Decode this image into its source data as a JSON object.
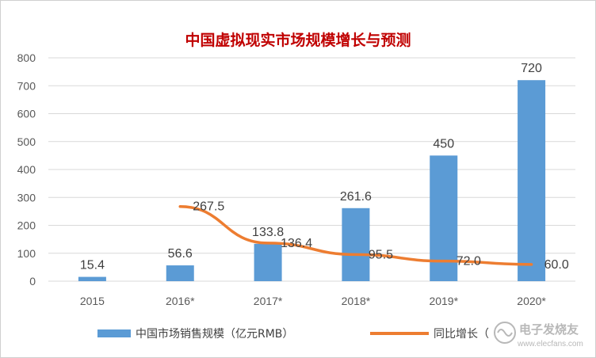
{
  "chart_data": {
    "type": "bar",
    "title": "中国虚拟现实市场规模增长与预测",
    "categories": [
      "2015",
      "2016*",
      "2017*",
      "2018*",
      "2019*",
      "2020*"
    ],
    "ylim": [
      0,
      800
    ],
    "yticks": [
      0,
      100,
      200,
      300,
      400,
      500,
      600,
      700,
      800
    ],
    "series": [
      {
        "name": "中国市场销售规模（亿元RMB）",
        "type": "bar",
        "color": "#5b9bd5",
        "values": [
          15.4,
          56.6,
          133.8,
          261.6,
          450,
          720
        ],
        "labels": [
          "15.4",
          "56.6",
          "133.8",
          "261.6",
          "450",
          "720"
        ]
      },
      {
        "name": "同比增长（",
        "type": "line",
        "color": "#ed7d31",
        "values": [
          null,
          267.5,
          136.4,
          95.5,
          72.0,
          60.0
        ],
        "labels": [
          "",
          "267.5",
          "136.4",
          "95.5",
          "72.0",
          "60.0"
        ]
      }
    ],
    "legend_position": "bottom"
  },
  "watermark": {
    "text": "电子发烧友",
    "url_text": "www.elecfans.com"
  }
}
